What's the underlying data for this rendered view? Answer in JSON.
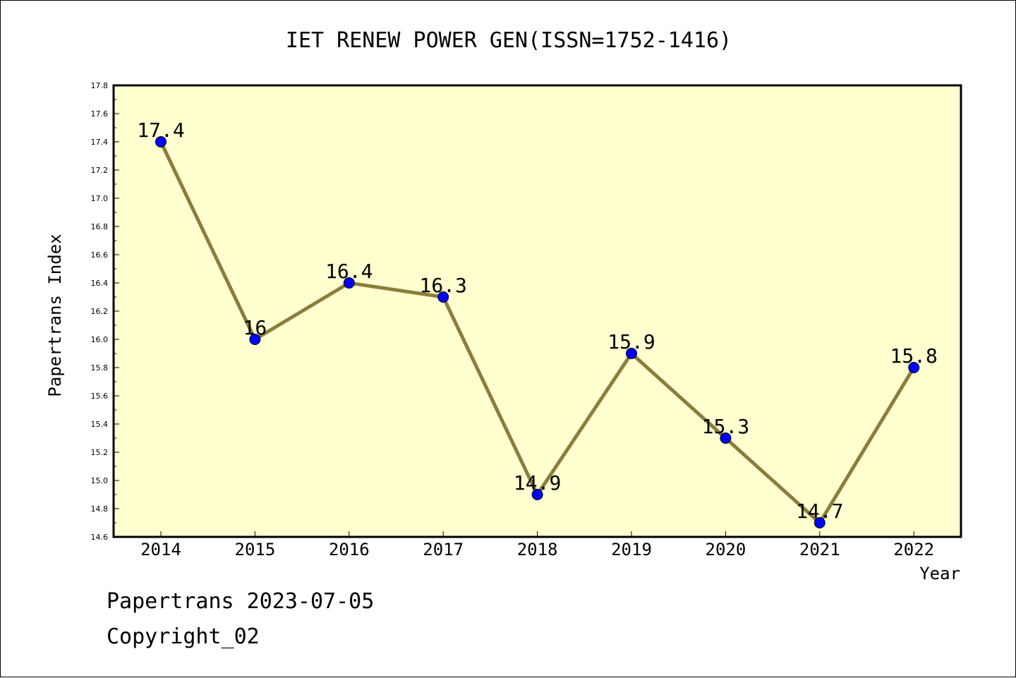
{
  "chart_data": {
    "type": "line",
    "title": "IET RENEW POWER GEN(ISSN=1752-1416)",
    "xlabel": "Year",
    "ylabel": "Papertrans Index",
    "categories": [
      "2014",
      "2015",
      "2016",
      "2017",
      "2018",
      "2019",
      "2020",
      "2021",
      "2022"
    ],
    "values": [
      17.4,
      16.0,
      16.4,
      16.3,
      14.9,
      15.9,
      15.3,
      14.7,
      15.8
    ],
    "data_labels": [
      "17.4",
      "16",
      "16.4",
      "16.3",
      "14.9",
      "15.9",
      "15.3",
      "14.7",
      "15.8"
    ],
    "ylim": [
      14.6,
      17.8
    ],
    "yticks": [
      "14.6",
      "14.8",
      "15.0",
      "15.2",
      "15.4",
      "15.6",
      "15.8",
      "16.0",
      "16.2",
      "16.4",
      "16.6",
      "16.8",
      "17.0",
      "17.2",
      "17.4",
      "17.6",
      "17.8"
    ],
    "grid": false,
    "legend": "none",
    "colors": {
      "plot_background": "#ffffd0",
      "line": "#8b7d3a",
      "marker": "#0000ff",
      "axis": "#000000"
    }
  },
  "footer": {
    "date_line": "Papertrans 2023-07-05",
    "copyright_line": "Copyright_02"
  }
}
